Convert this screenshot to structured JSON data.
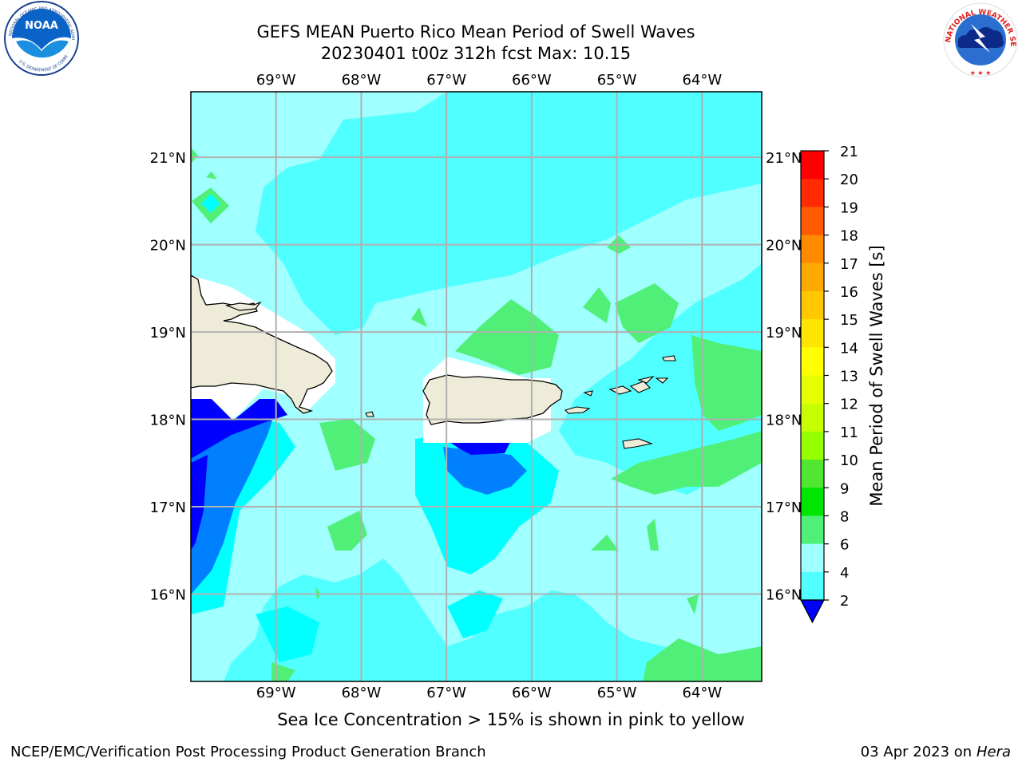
{
  "header": {
    "title_line1": "GEFS MEAN Puerto Rico Mean Period of Swell Waves",
    "title_line2": "20230401 t00z 312h fcst   Max: 10.15"
  },
  "logos": {
    "left": "noaa-logo",
    "right": "national-weather-service-logo",
    "left_center_text": "NOAA",
    "left_ring_text": "NATIONAL OCEANIC AND ATMOSPHERIC ADMINISTRATION",
    "left_ring_bottom": "U.S. DEPARTMENT OF COMMERCE",
    "right_ring_text": "NATIONAL WEATHER SERVICE"
  },
  "map": {
    "lon_labels": [
      "69°W",
      "68°W",
      "67°W",
      "66°W",
      "65°W",
      "64°W"
    ],
    "lon_values": [
      -69,
      -68,
      -67,
      -66,
      -65,
      -64
    ],
    "lat_labels": [
      "21°N",
      "20°N",
      "19°N",
      "18°N",
      "17°N",
      "16°N"
    ],
    "lat_values": [
      21,
      20,
      19,
      18,
      17,
      16
    ],
    "extent": {
      "lon_min": -70,
      "lon_max": -63.3,
      "lat_min": 15,
      "lat_max": 21.75
    }
  },
  "colorbar": {
    "label": "Mean Period of Swell Waves [s]",
    "ticks": [
      "21",
      "20",
      "19",
      "18",
      "17",
      "16",
      "15",
      "14",
      "13",
      "12",
      "11",
      "10",
      "9",
      "8",
      "6",
      "4",
      "2"
    ],
    "colors": [
      "#ff0000",
      "#ff2a00",
      "#ff5a00",
      "#ff8a00",
      "#ffaa00",
      "#ffc800",
      "#ffe600",
      "#ffff00",
      "#e6ff00",
      "#c8ff00",
      "#96ff00",
      "#50e632",
      "#00e600",
      "#50f078",
      "#a0ffff",
      "#50ffff",
      "#00ffff",
      "#0080ff",
      "#0000ff"
    ]
  },
  "caption": "Sea Ice Concentration > 15% is shown in pink to yellow",
  "footer": {
    "left": "NCEP/EMC/Verification Post Processing Product Generation Branch",
    "date": "03 Apr 2023 on ",
    "host": "Hera"
  }
}
